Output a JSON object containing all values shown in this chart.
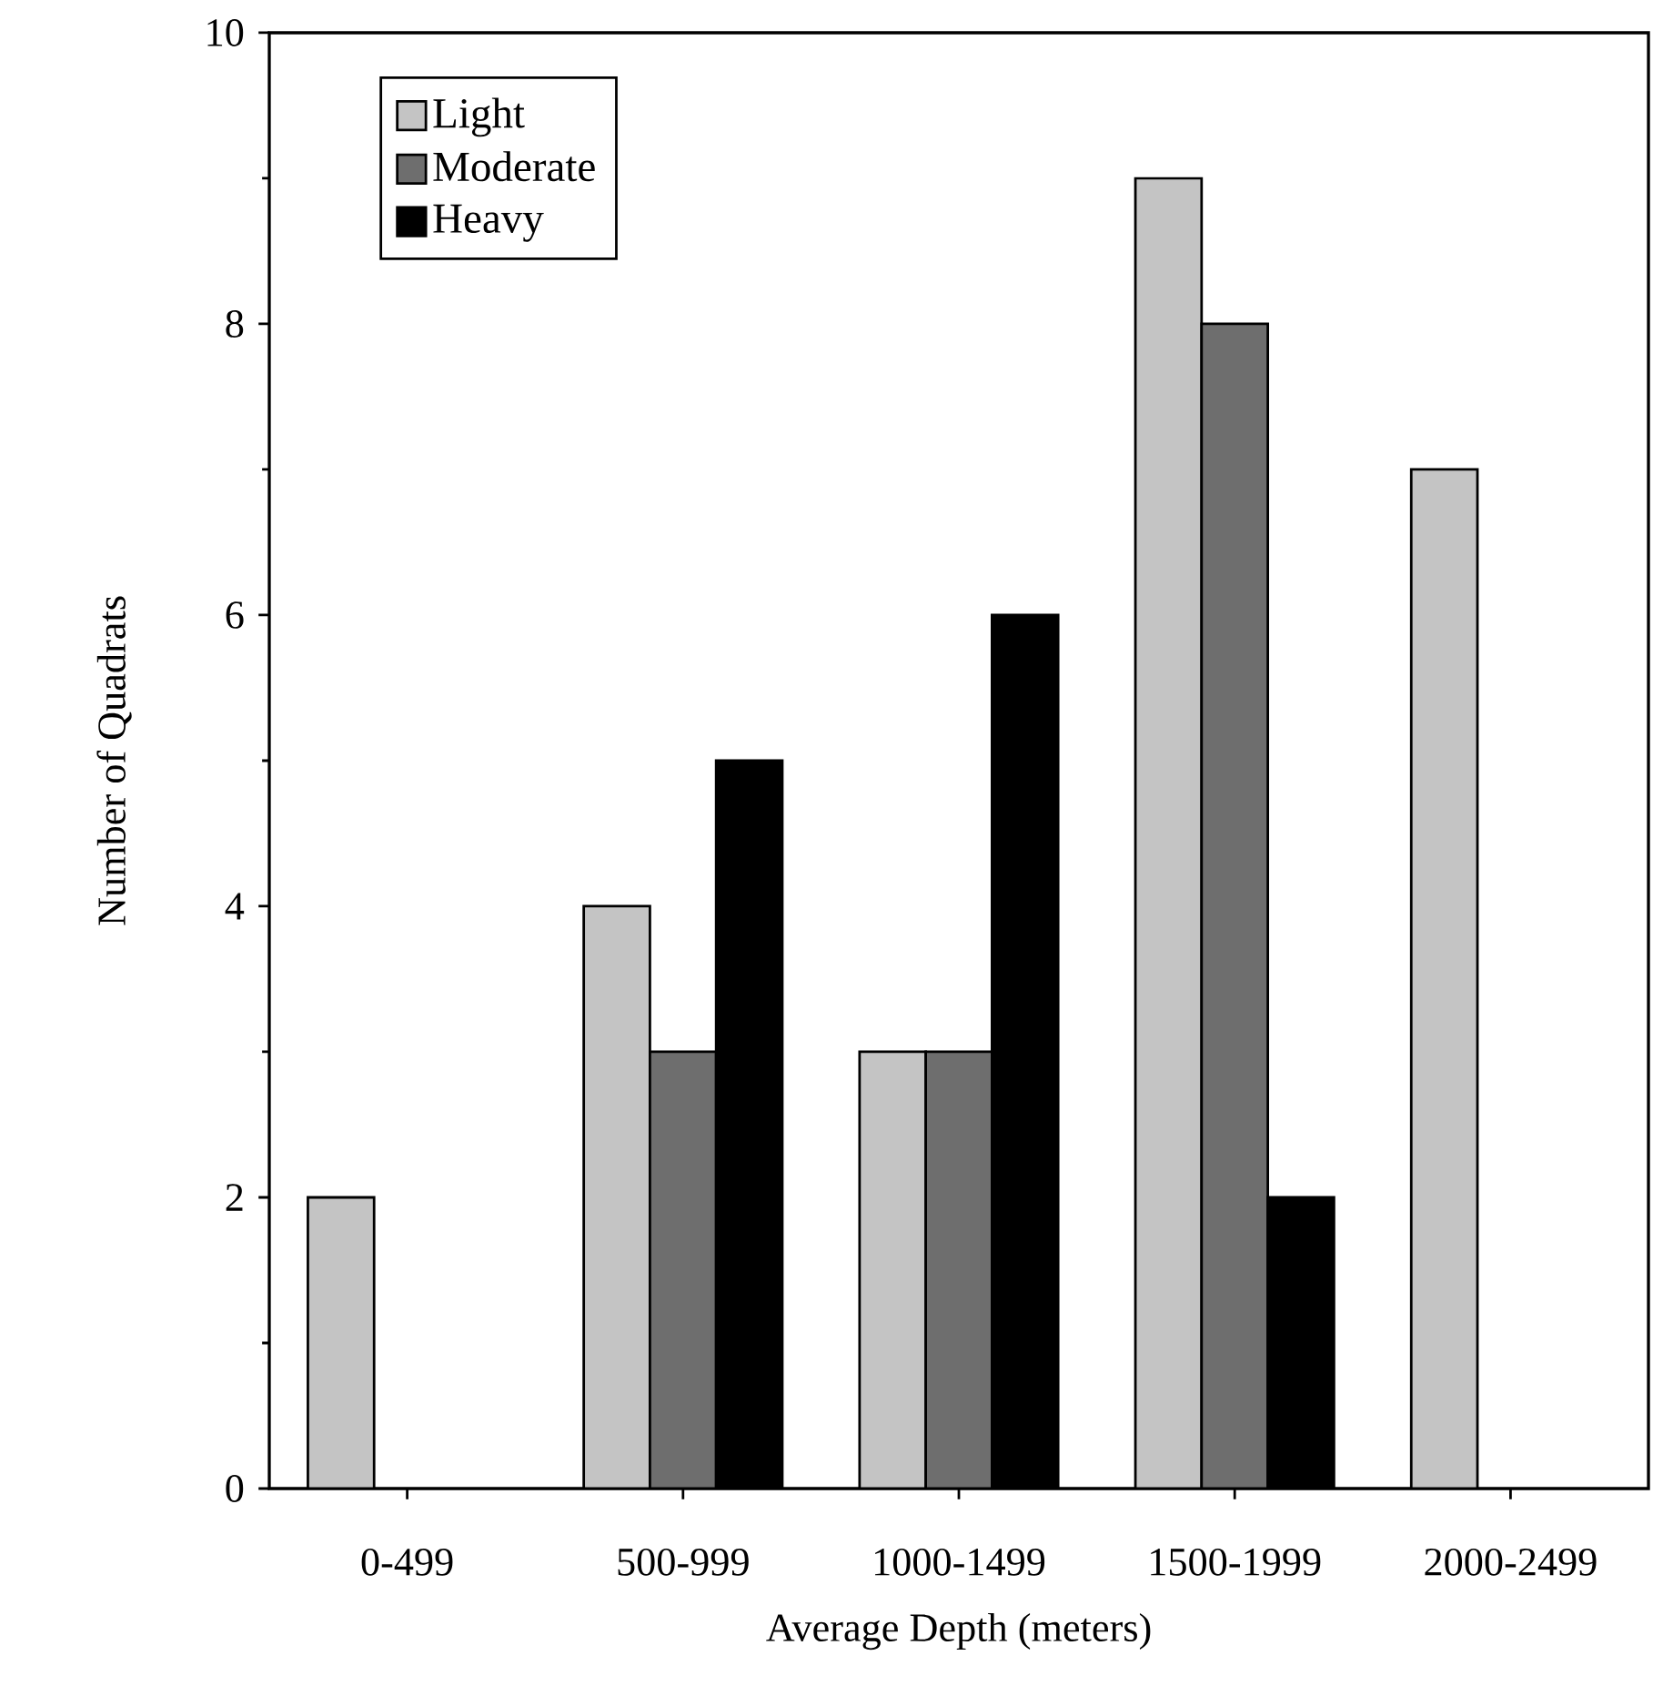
{
  "chart_data": {
    "type": "bar",
    "xlabel": "Average Depth (meters)",
    "ylabel": "Number of Quadrats",
    "categories": [
      "0-499",
      "500-999",
      "1000-1499",
      "1500-1999",
      "2000-2499"
    ],
    "series": [
      {
        "name": "Light",
        "color": "#c4c4c4",
        "values": [
          2,
          4,
          3,
          9,
          7
        ]
      },
      {
        "name": "Moderate",
        "color": "#6e6e6e",
        "values": [
          null,
          3,
          3,
          8,
          null
        ]
      },
      {
        "name": "Heavy",
        "color": "#000000",
        "values": [
          null,
          5,
          6,
          2,
          null
        ]
      }
    ],
    "ylim": [
      0,
      10
    ],
    "yticks": [
      0,
      2,
      4,
      6,
      8,
      10
    ],
    "grid": false,
    "legend": "top left"
  }
}
